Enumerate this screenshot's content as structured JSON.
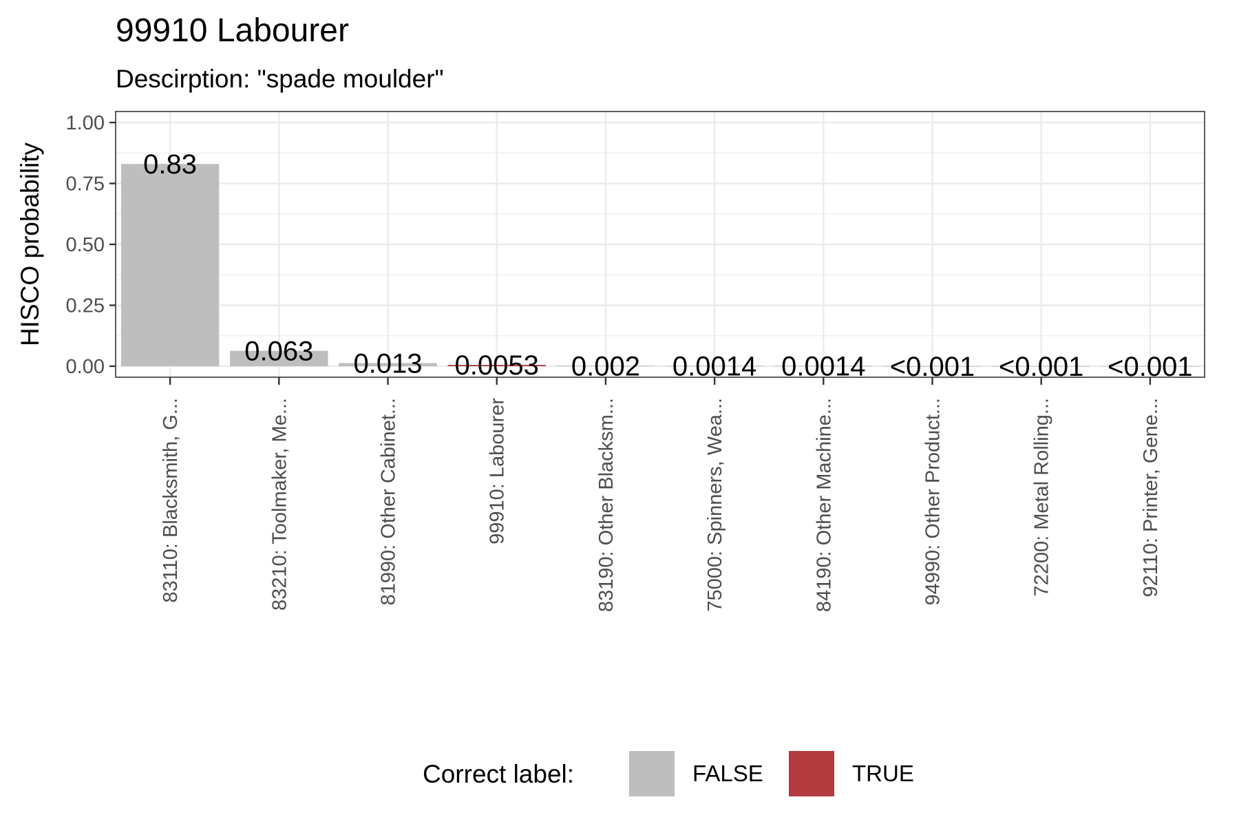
{
  "chart_data": {
    "type": "bar",
    "title": "99910 Labourer",
    "subtitle": "Descirption: \"spade moulder\"",
    "xlabel": "",
    "ylabel": "HISCO probability",
    "ylim": [
      0,
      1.05
    ],
    "yticks": [
      0,
      0.25,
      0.5,
      0.75,
      1.0
    ],
    "ytick_labels": [
      "0.00",
      "0.25",
      "0.50",
      "0.75",
      "1.00"
    ],
    "grid": true,
    "categories": [
      "83110: Blacksmith, G...",
      "83210: Toolmaker, Me...",
      "81990: Other Cabinet...",
      "99910: Labourer",
      "83190: Other Blacksm...",
      "75000: Spinners, Wea...",
      "84190: Other Machine...",
      "94990: Other Product...",
      "72200: Metal Rolling...",
      "92110: Printer, Gene..."
    ],
    "values": [
      0.83,
      0.063,
      0.013,
      0.0053,
      0.002,
      0.0014,
      0.0014,
      0.0005,
      0.0005,
      0.0005
    ],
    "data_labels": [
      "0.83",
      "0.063",
      "0.013",
      "0.0053",
      "0.002",
      "0.0014",
      "0.0014",
      "<0.001",
      "<0.001",
      "<0.001"
    ],
    "correct": [
      false,
      false,
      false,
      true,
      false,
      false,
      false,
      false,
      false,
      false
    ],
    "legend": {
      "title": "Correct label:",
      "position": "bottom",
      "entries": [
        {
          "label": "FALSE",
          "color": "#bebebe"
        },
        {
          "label": "TRUE",
          "color": "#b33b3f"
        }
      ]
    },
    "colors": {
      "false": "#bebebe",
      "true": "#b33b3f",
      "grid": "#ebebeb",
      "panel_border": "#333333"
    }
  }
}
